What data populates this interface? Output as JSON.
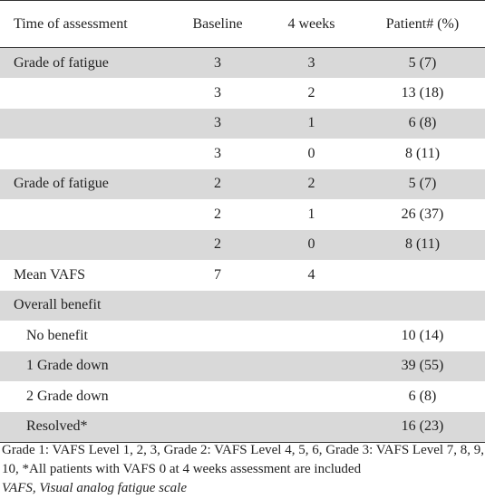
{
  "table": {
    "headers": [
      "Time of assessment",
      "Baseline",
      "4 weeks",
      "Patient# (%)"
    ],
    "rows": [
      {
        "label": "Grade of fatigue",
        "baseline": "3",
        "weeks4": "3",
        "patients": "5 (7)",
        "shaded": true,
        "indent": false
      },
      {
        "label": "",
        "baseline": "3",
        "weeks4": "2",
        "patients": "13 (18)",
        "shaded": false,
        "indent": false
      },
      {
        "label": "",
        "baseline": "3",
        "weeks4": "1",
        "patients": "6 (8)",
        "shaded": true,
        "indent": false
      },
      {
        "label": "",
        "baseline": "3",
        "weeks4": "0",
        "patients": "8 (11)",
        "shaded": false,
        "indent": false
      },
      {
        "label": "Grade of fatigue",
        "baseline": "2",
        "weeks4": "2",
        "patients": "5 (7)",
        "shaded": true,
        "indent": false
      },
      {
        "label": "",
        "baseline": "2",
        "weeks4": "1",
        "patients": "26 (37)",
        "shaded": false,
        "indent": false
      },
      {
        "label": "",
        "baseline": "2",
        "weeks4": "0",
        "patients": "8 (11)",
        "shaded": true,
        "indent": false
      },
      {
        "label": "Mean VAFS",
        "baseline": "7",
        "weeks4": "4",
        "patients": "",
        "shaded": false,
        "indent": false
      },
      {
        "label": "Overall benefit",
        "baseline": "",
        "weeks4": "",
        "patients": "",
        "shaded": true,
        "indent": false
      },
      {
        "label": "No benefit",
        "baseline": "",
        "weeks4": "",
        "patients": "10 (14)",
        "shaded": false,
        "indent": true
      },
      {
        "label": "1 Grade down",
        "baseline": "",
        "weeks4": "",
        "patients": "39 (55)",
        "shaded": true,
        "indent": true
      },
      {
        "label": "2 Grade down",
        "baseline": "",
        "weeks4": "",
        "patients": "6 (8)",
        "shaded": false,
        "indent": true
      },
      {
        "label": "Resolved*",
        "baseline": "",
        "weeks4": "",
        "patients": "16 (23)",
        "shaded": true,
        "indent": true
      }
    ]
  },
  "footnotes": {
    "grades": "Grade 1: VAFS Level 1, 2, 3, Grade 2: VAFS Level 4, 5, 6, Grade 3: VAFS Level 7, 8, 9, 10, *All patients with VAFS 0 at 4 weeks assessment are included",
    "abbreviation": "VAFS, Visual analog fatigue scale"
  },
  "colors": {
    "shade": "#d9d9d9",
    "rule": "#333333",
    "text": "#222222"
  }
}
